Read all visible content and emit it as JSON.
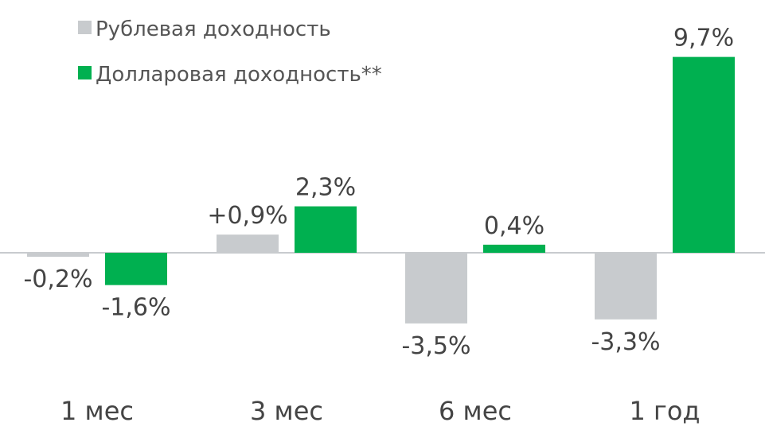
{
  "chart_data": {
    "type": "bar",
    "categories": [
      "1 мес",
      "3 мес",
      "6 мес",
      "1 год"
    ],
    "series": [
      {
        "name": "Рублевая доходность",
        "color": "#c8cbce",
        "values": [
          -0.2,
          0.9,
          -3.5,
          -3.3
        ],
        "labels": [
          "-0,2%",
          "+0,9%",
          "-3,5%",
          "-3,3%"
        ]
      },
      {
        "name": "Долларовая доходность**",
        "color": "#00b050",
        "values": [
          -1.6,
          2.3,
          0.4,
          9.7
        ],
        "labels": [
          "-1,6%",
          "2,3%",
          "0,4%",
          "9,7%"
        ]
      }
    ],
    "ylim": [
      -5,
      10
    ],
    "grid": false,
    "legend_position": "top-left",
    "axis_color": "#c8cbce"
  }
}
